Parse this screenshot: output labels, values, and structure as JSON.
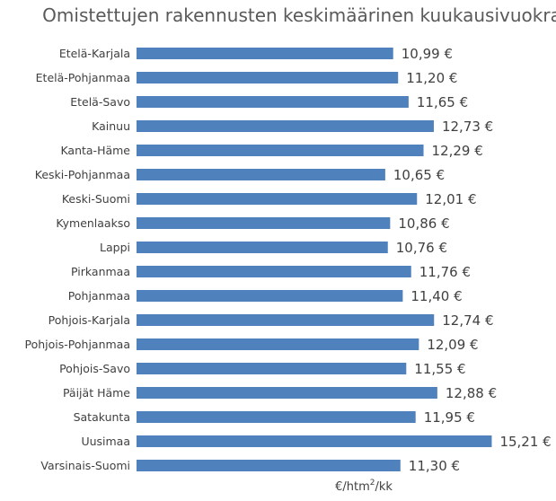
{
  "chart_data": {
    "type": "bar",
    "orientation": "horizontal",
    "title": "Omistettujen rakennusten keskimäärinen kuukausivuokra",
    "xlabel_main": "€/htm",
    "xlabel_sup": "2",
    "xlabel_end": "/kk",
    "value_suffix": " €",
    "bar_color": "#4F81BD",
    "xlim": [
      0,
      16
    ],
    "categories": [
      "Etelä-Karjala",
      "Etelä-Pohjanmaa",
      "Etelä-Savo",
      "Kainuu",
      "Kanta-Häme",
      "Keski-Pohjanmaa",
      "Keski-Suomi",
      "Kymenlaakso",
      "Lappi",
      "Pirkanmaa",
      "Pohjanmaa",
      "Pohjois-Karjala",
      "Pohjois-Pohjanmaa",
      "Pohjois-Savo",
      "Päijät Häme",
      "Satakunta",
      "Uusimaa",
      "Varsinais-Suomi"
    ],
    "values": [
      10.99,
      11.2,
      11.65,
      12.73,
      12.29,
      10.65,
      12.01,
      10.86,
      10.76,
      11.76,
      11.4,
      12.74,
      12.09,
      11.55,
      12.88,
      11.95,
      15.21,
      11.3
    ],
    "value_labels": [
      "10,99 €",
      "11,20 €",
      "11,65 €",
      "12,73 €",
      "12,29 €",
      "10,65 €",
      "12,01 €",
      "10,86 €",
      "10,76 €",
      "11,76 €",
      "11,40 €",
      "12,74 €",
      "12,09 €",
      "11,55 €",
      "12,88 €",
      "11,95 €",
      "15,21 €",
      "11,30 €"
    ]
  }
}
